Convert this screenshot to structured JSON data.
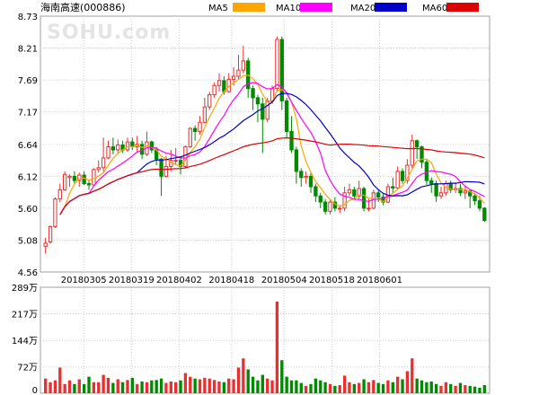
{
  "chart_data": {
    "type": "candlestick",
    "title": "海南高速(000886)",
    "watermark": "SOHU.com",
    "y_ticks": [
      "8.73",
      "8.21",
      "7.69",
      "7.17",
      "6.64",
      "6.12",
      "5.60",
      "5.08",
      "4.56"
    ],
    "ylim": [
      4.56,
      8.73
    ],
    "x_tick_labels": [
      "20180305",
      "20180319",
      "20180402",
      "20180418",
      "20180504",
      "20180518",
      "20180601"
    ],
    "legend": [
      {
        "name": "MA5",
        "color": "#ffa500"
      },
      {
        "name": "MA10",
        "color": "#ff00ff"
      },
      {
        "name": "MA20",
        "color": "#0000c8"
      },
      {
        "name": "MA60",
        "color": "#dd0000"
      }
    ],
    "colors": {
      "up": "#e83030",
      "down": "#008a00"
    },
    "volume": {
      "y_ticks": [
        "289万",
        "217万",
        "144万",
        "72万",
        "0"
      ],
      "ylim": [
        0,
        289
      ]
    },
    "candles": [
      [
        4.98,
        5.03,
        4.86,
        5.12,
        40
      ],
      [
        5.05,
        5.3,
        5.02,
        5.32,
        30
      ],
      [
        5.3,
        5.75,
        5.28,
        5.78,
        35
      ],
      [
        5.75,
        5.9,
        5.7,
        6.0,
        70
      ],
      [
        5.9,
        6.15,
        5.88,
        6.2,
        25
      ],
      [
        6.1,
        6.12,
        5.95,
        6.15,
        35
      ],
      [
        6.12,
        6.05,
        6.0,
        6.2,
        25
      ],
      [
        6.05,
        6.14,
        5.95,
        6.18,
        38
      ],
      [
        6.14,
        6.0,
        5.98,
        6.2,
        25
      ],
      [
        6.0,
        5.98,
        5.9,
        6.05,
        45
      ],
      [
        5.98,
        6.23,
        5.95,
        6.25,
        30
      ],
      [
        6.23,
        6.26,
        6.18,
        6.38,
        30
      ],
      [
        6.26,
        6.42,
        6.2,
        6.75,
        50
      ],
      [
        6.42,
        6.6,
        6.4,
        6.7,
        42
      ],
      [
        6.6,
        6.55,
        6.48,
        6.75,
        28
      ],
      [
        6.55,
        6.63,
        6.5,
        6.72,
        38
      ],
      [
        6.63,
        6.55,
        6.5,
        6.7,
        30
      ],
      [
        6.55,
        6.68,
        6.52,
        6.75,
        36
      ],
      [
        6.68,
        6.6,
        6.55,
        6.75,
        42
      ],
      [
        6.6,
        6.64,
        6.5,
        6.78,
        25
      ],
      [
        6.64,
        6.48,
        6.4,
        6.7,
        32
      ],
      [
        6.48,
        6.68,
        6.45,
        6.85,
        30
      ],
      [
        6.68,
        6.55,
        6.5,
        6.7,
        35
      ],
      [
        6.55,
        6.4,
        6.3,
        6.6,
        36
      ],
      [
        6.4,
        6.12,
        5.8,
        6.42,
        40
      ],
      [
        6.12,
        6.28,
        6.1,
        6.45,
        28
      ],
      [
        6.28,
        6.38,
        6.2,
        6.55,
        32
      ],
      [
        6.38,
        6.38,
        6.3,
        6.58,
        30
      ],
      [
        6.38,
        6.28,
        6.15,
        6.45,
        35
      ],
      [
        6.28,
        6.6,
        6.25,
        6.62,
        55
      ],
      [
        6.6,
        6.9,
        6.58,
        6.92,
        45
      ],
      [
        6.9,
        6.85,
        6.7,
        6.95,
        40
      ],
      [
        6.85,
        7.0,
        6.8,
        7.1,
        38
      ],
      [
        7.0,
        7.25,
        6.98,
        7.4,
        42
      ],
      [
        7.25,
        7.45,
        7.2,
        7.5,
        40
      ],
      [
        7.45,
        7.6,
        7.4,
        7.65,
        36
      ],
      [
        7.6,
        7.68,
        7.5,
        7.8,
        32
      ],
      [
        7.68,
        7.5,
        7.45,
        7.75,
        30
      ],
      [
        7.5,
        7.7,
        7.48,
        7.8,
        40
      ],
      [
        7.7,
        7.75,
        7.6,
        7.9,
        38
      ],
      [
        7.75,
        7.85,
        7.7,
        8.1,
        70
      ],
      [
        7.85,
        8.0,
        7.8,
        8.25,
        95
      ],
      [
        8.0,
        7.55,
        7.4,
        8.05,
        65
      ],
      [
        7.55,
        7.4,
        7.2,
        7.6,
        45
      ],
      [
        7.4,
        7.3,
        7.0,
        7.45,
        35
      ],
      [
        7.3,
        7.05,
        6.5,
        7.4,
        50
      ],
      [
        7.05,
        7.35,
        7.0,
        7.4,
        40
      ],
      [
        7.35,
        7.55,
        7.3,
        7.6,
        35
      ],
      [
        7.55,
        8.35,
        7.5,
        8.4,
        250
      ],
      [
        8.35,
        7.35,
        7.2,
        8.4,
        90
      ],
      [
        7.35,
        6.85,
        6.75,
        7.4,
        45
      ],
      [
        6.85,
        6.55,
        6.5,
        7.1,
        35
      ],
      [
        6.55,
        6.2,
        6.0,
        6.6,
        35
      ],
      [
        6.2,
        6.1,
        5.95,
        6.25,
        28
      ],
      [
        6.1,
        6.12,
        6.0,
        6.2,
        20
      ],
      [
        6.12,
        5.95,
        5.85,
        6.2,
        25
      ],
      [
        5.95,
        5.8,
        5.7,
        6.0,
        40
      ],
      [
        5.8,
        5.7,
        5.6,
        5.85,
        35
      ],
      [
        5.7,
        5.55,
        5.5,
        5.75,
        30
      ],
      [
        5.55,
        5.7,
        5.5,
        5.75,
        25
      ],
      [
        5.7,
        5.6,
        5.55,
        5.78,
        20
      ],
      [
        5.6,
        5.6,
        5.52,
        5.65,
        22
      ],
      [
        5.6,
        5.85,
        5.55,
        5.95,
        48
      ],
      [
        5.85,
        5.9,
        5.8,
        6.0,
        30
      ],
      [
        5.9,
        5.8,
        5.75,
        5.95,
        25
      ],
      [
        5.8,
        5.92,
        5.75,
        6.05,
        28
      ],
      [
        5.92,
        5.6,
        5.55,
        5.95,
        38
      ],
      [
        5.6,
        5.6,
        5.55,
        5.75,
        30
      ],
      [
        5.6,
        5.85,
        5.58,
        5.9,
        36
      ],
      [
        5.85,
        5.78,
        5.7,
        5.9,
        28
      ],
      [
        5.78,
        5.7,
        5.65,
        5.85,
        25
      ],
      [
        5.7,
        5.95,
        5.68,
        6.0,
        35
      ],
      [
        5.95,
        5.93,
        5.85,
        6.1,
        30
      ],
      [
        5.93,
        6.2,
        5.9,
        6.28,
        45
      ],
      [
        6.2,
        6.05,
        6.0,
        6.25,
        38
      ],
      [
        6.05,
        6.3,
        6.0,
        6.4,
        60
      ],
      [
        6.3,
        6.7,
        6.25,
        6.8,
        95
      ],
      [
        6.7,
        6.6,
        6.4,
        6.72,
        40
      ],
      [
        6.6,
        6.35,
        6.25,
        6.62,
        35
      ],
      [
        6.35,
        6.05,
        5.98,
        6.4,
        30
      ],
      [
        6.05,
        6.0,
        5.85,
        6.1,
        32
      ],
      [
        6.0,
        5.8,
        5.7,
        6.05,
        25
      ],
      [
        5.8,
        5.85,
        5.75,
        5.95,
        20
      ],
      [
        5.85,
        6.0,
        5.8,
        6.05,
        30
      ],
      [
        6.0,
        5.9,
        5.85,
        6.05,
        25
      ],
      [
        5.9,
        5.92,
        5.85,
        6.02,
        20
      ],
      [
        5.92,
        5.85,
        5.8,
        6.0,
        28
      ],
      [
        5.85,
        5.88,
        5.75,
        5.95,
        22
      ],
      [
        5.88,
        5.8,
        5.6,
        5.9,
        20
      ],
      [
        5.8,
        5.72,
        5.65,
        5.85,
        18
      ],
      [
        5.72,
        5.6,
        5.55,
        5.8,
        15
      ],
      [
        5.6,
        5.4,
        5.38,
        5.62,
        22
      ]
    ]
  }
}
